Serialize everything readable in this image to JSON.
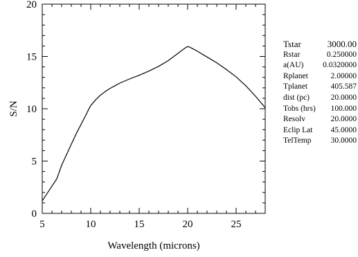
{
  "chart_data": {
    "type": "line",
    "title": "",
    "xlabel": "Wavelength (microns)",
    "ylabel": "S/N",
    "xlim": [
      5,
      28
    ],
    "ylim": [
      0,
      20
    ],
    "xticks": [
      5,
      10,
      15,
      20,
      25
    ],
    "yticks": [
      0,
      5,
      10,
      15,
      20
    ],
    "grid": false,
    "legend": "none",
    "series": [
      {
        "x": [
          5.0,
          5.5,
          6.0,
          6.5,
          7.0,
          7.5,
          8.0,
          8.5,
          9.0,
          9.5,
          9.85,
          10.0,
          10.5,
          11.0,
          11.5,
          12.0,
          12.5,
          13.0,
          13.5,
          14.0,
          15.0,
          16.0,
          17.0,
          18.0,
          19.0,
          19.5,
          19.8,
          20.0,
          20.2,
          20.5,
          21.0,
          22.0,
          23.0,
          24.0,
          25.0,
          26.0,
          27.0,
          28.0
        ],
        "y": [
          1.2,
          1.9,
          2.6,
          3.3,
          4.6,
          5.6,
          6.6,
          7.6,
          8.5,
          9.4,
          10.05,
          10.3,
          10.85,
          11.3,
          11.65,
          11.95,
          12.2,
          12.45,
          12.65,
          12.85,
          13.2,
          13.6,
          14.05,
          14.6,
          15.3,
          15.65,
          15.85,
          15.95,
          15.9,
          15.75,
          15.5,
          14.95,
          14.4,
          13.75,
          13.05,
          12.2,
          11.2,
          10.1
        ]
      }
    ]
  },
  "parameters": [
    {
      "name": "Tstar",
      "value": "3000.00"
    },
    {
      "name": "Rstar",
      "value": "0.250000"
    },
    {
      "name": "a(AU)",
      "value": "0.0320000"
    },
    {
      "name": "Rplanet",
      "value": "2.00000"
    },
    {
      "name": "Tplanet",
      "value": "405.587"
    },
    {
      "name": "dist (pc)",
      "value": "20.0000"
    },
    {
      "name": "Tobs (hrs)",
      "value": "100.000"
    },
    {
      "name": "Resolv",
      "value": "20.0000"
    },
    {
      "name": "Eclip Lat",
      "value": "45.0000"
    },
    {
      "name": "TelTemp",
      "value": "30.0000"
    }
  ]
}
